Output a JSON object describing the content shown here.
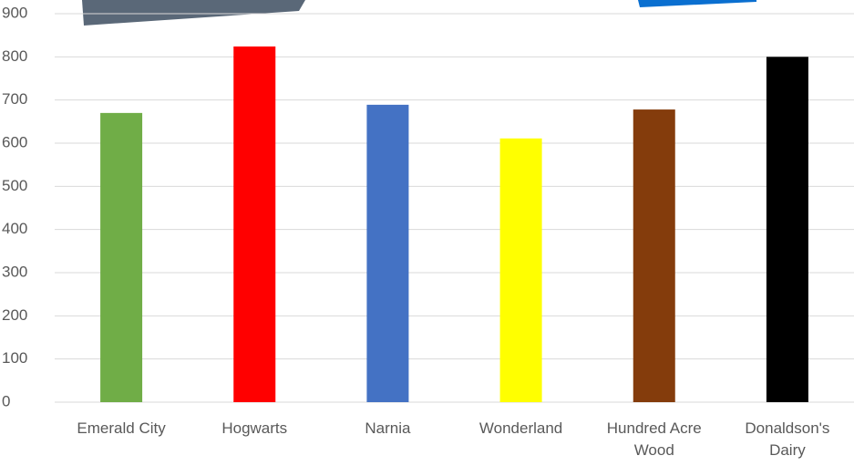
{
  "chart_data": {
    "type": "bar",
    "categories": [
      "Emerald City",
      "Hogwarts",
      "Narnia",
      "Wonderland",
      "Hundred Acre Wood",
      "Donaldson's Dairy"
    ],
    "values": [
      670,
      824,
      689,
      611,
      678,
      800
    ],
    "colors": [
      "#70ad47",
      "#ff0000",
      "#4472c4",
      "#ffff00",
      "#843c0c",
      "#000000"
    ],
    "ylim": [
      0,
      900
    ],
    "yticks": [
      0,
      100,
      200,
      300,
      400,
      500,
      600,
      700,
      800,
      900
    ],
    "grid": true
  }
}
